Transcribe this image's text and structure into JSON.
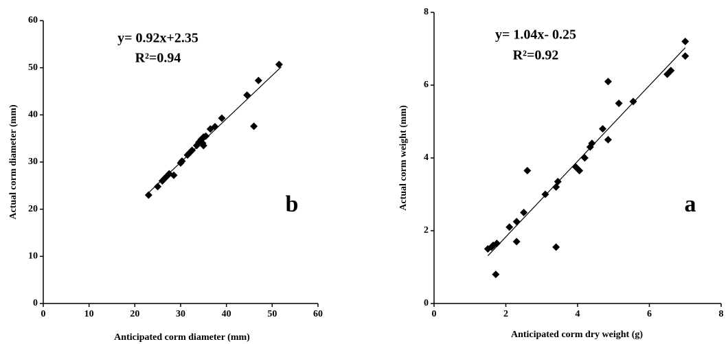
{
  "chart_data": [
    {
      "type": "scatter",
      "equation": "y= 0.92x+2.35",
      "r_squared": "R²=0.94",
      "panel_label": "b",
      "x_label": "Anticipated corm diameter (mm)",
      "y_label": "Actual corm diameter (mm)",
      "xlim": [
        0,
        60
      ],
      "ylim": [
        0,
        60
      ],
      "xticks": [
        0,
        10,
        20,
        30,
        40,
        50,
        60
      ],
      "yticks": [
        0,
        10,
        20,
        30,
        40,
        50,
        60
      ],
      "color": "#000000",
      "series": [
        {
          "type": "scatter",
          "x": [
            23,
            25,
            26,
            26.5,
            27,
            27.5,
            28.5,
            30,
            30.3,
            31.5,
            32,
            32.5,
            33.5,
            34,
            34.5,
            35,
            34.8,
            35,
            35.5,
            36.5,
            37.5,
            39,
            44.5,
            46,
            47,
            51.5
          ],
          "values": [
            23,
            24.8,
            26,
            26.5,
            27,
            27.5,
            27.2,
            29.8,
            30.2,
            31.5,
            32,
            32.5,
            33.5,
            34.2,
            34.8,
            35.3,
            34,
            33.5,
            35.5,
            37,
            37.5,
            39.3,
            44.2,
            37.6,
            47.3,
            50.7
          ]
        },
        {
          "type": "line",
          "x": [
            23,
            52
          ],
          "values": [
            23.5,
            50.2
          ]
        }
      ]
    },
    {
      "type": "scatter",
      "equation": "y= 1.04x- 0.25",
      "r_squared": "R²=0.92",
      "panel_label": "a",
      "x_label": "Anticipated corm dry weight (g)",
      "y_label": "Actual corm weight (mm)",
      "xlim": [
        0,
        8
      ],
      "ylim": [
        0,
        8
      ],
      "xticks": [
        0,
        2,
        4,
        6,
        8
      ],
      "yticks": [
        0,
        2,
        4,
        6,
        8
      ],
      "color": "#000000",
      "series": [
        {
          "type": "scatter",
          "x": [
            1.5,
            1.6,
            1.65,
            1.75,
            1.72,
            2.1,
            2.3,
            2.3,
            2.5,
            2.6,
            3.1,
            3.4,
            3.45,
            3.4,
            3.95,
            4.05,
            4.2,
            4.35,
            4.4,
            4.7,
            4.85,
            4.85,
            5.15,
            5.55,
            6.5,
            6.6,
            7.0,
            7.0
          ],
          "values": [
            1.5,
            1.55,
            1.6,
            1.65,
            0.8,
            2.1,
            2.25,
            1.7,
            2.5,
            3.65,
            3.0,
            3.2,
            3.35,
            1.55,
            3.75,
            3.65,
            4.0,
            4.3,
            4.4,
            4.8,
            4.5,
            6.1,
            5.5,
            5.55,
            6.3,
            6.4,
            7.2,
            6.8
          ]
        },
        {
          "type": "line",
          "x": [
            1.5,
            7
          ],
          "values": [
            1.31,
            7.03
          ]
        }
      ]
    }
  ]
}
